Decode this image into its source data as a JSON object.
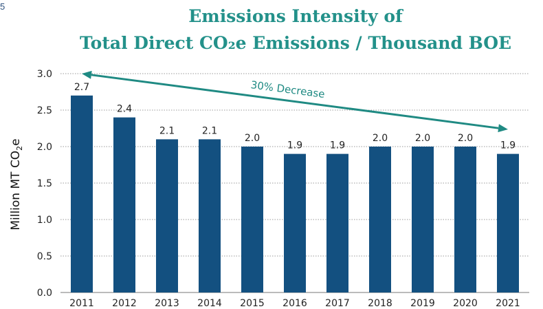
{
  "page": {
    "corner_text": "5"
  },
  "chart_data": {
    "type": "bar",
    "title_line1": "Emissions Intensity of",
    "title_line2": "Total Direct CO₂e Emissions / Thousand BOE",
    "ylabel_main": "Million MT CO",
    "ylabel_sub": "2",
    "ylabel_tail": "e",
    "xlabel": "",
    "ylim": [
      0,
      3.0
    ],
    "yticks": [
      "0.0",
      "0.5",
      "1.0",
      "1.5",
      "2.0",
      "2.5",
      "3.0"
    ],
    "grid": "horizontal-dotted",
    "categories": [
      "2011",
      "2012",
      "2013",
      "2014",
      "2015",
      "2016",
      "2017",
      "2018",
      "2019",
      "2020",
      "2021"
    ],
    "values": [
      2.7,
      2.4,
      2.1,
      2.1,
      2.0,
      1.9,
      1.9,
      2.0,
      2.0,
      2.0,
      1.9
    ],
    "data_labels": [
      "2.7",
      "2.4",
      "2.1",
      "2.1",
      "2.0",
      "1.9",
      "1.9",
      "2.0",
      "2.0",
      "2.0",
      "1.9"
    ],
    "annotation": {
      "text": "30% Decrease",
      "from_category": "2011",
      "to_category": "2021"
    },
    "colors": {
      "bar": "#135080",
      "title": "#23918a",
      "arrow": "#1f8a83",
      "grid": "#9a9a9a"
    }
  }
}
